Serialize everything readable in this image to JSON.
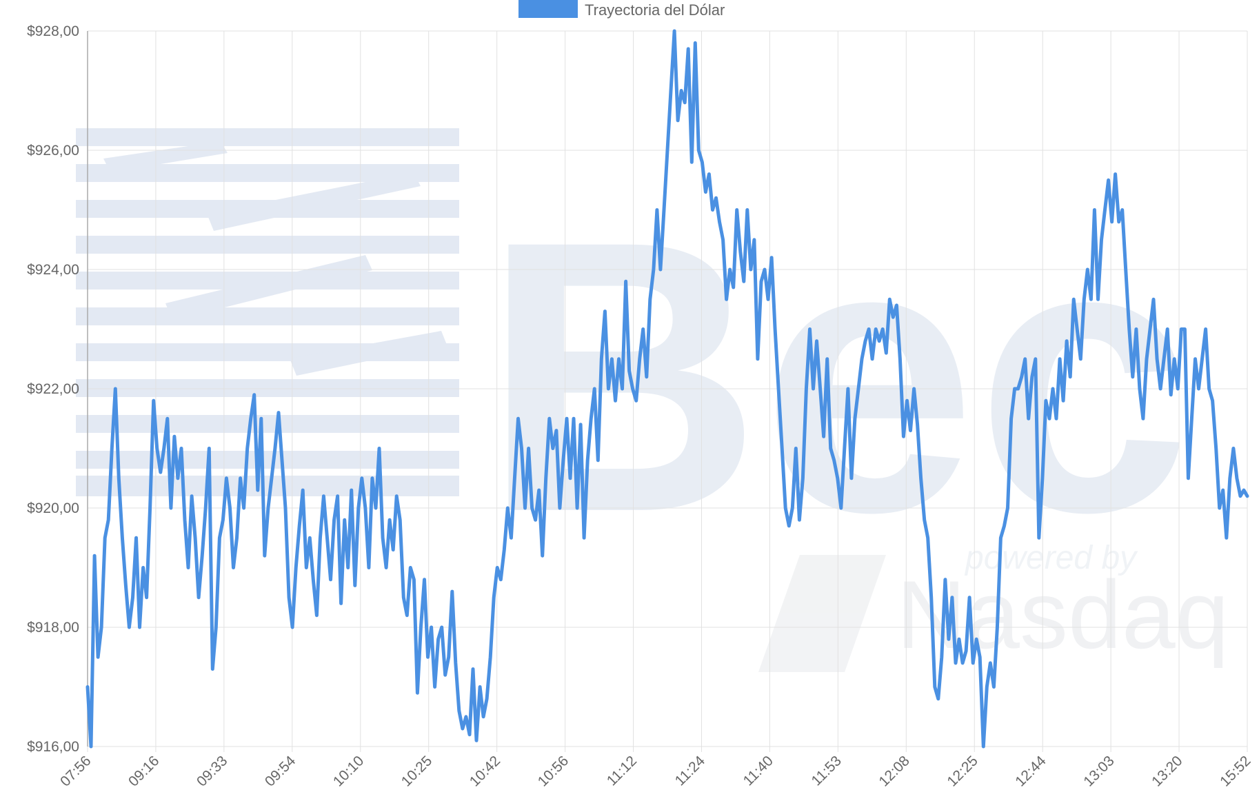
{
  "chart_data": {
    "type": "line",
    "legend": {
      "label": "Trayectoria del Dólar",
      "position": "top-center",
      "color": "#4a90e2"
    },
    "series": [
      {
        "name": "Trayectoria del Dólar",
        "color": "#4a90e2",
        "values": [
          917.0,
          916.0,
          919.2,
          917.5,
          918.0,
          919.5,
          919.8,
          921.0,
          922.0,
          920.5,
          919.5,
          918.7,
          918.0,
          918.5,
          919.5,
          918.0,
          919.0,
          918.5,
          920.0,
          921.8,
          921.0,
          920.6,
          921.0,
          921.5,
          920.0,
          921.2,
          920.5,
          921.0,
          919.8,
          919.0,
          920.2,
          919.5,
          918.5,
          919.2,
          920.0,
          921.0,
          917.3,
          918.0,
          919.5,
          919.8,
          920.5,
          920.0,
          919.0,
          919.5,
          920.5,
          920.0,
          921.0,
          921.5,
          921.9,
          920.3,
          921.5,
          919.2,
          920.0,
          920.5,
          921.0,
          921.6,
          920.8,
          920.0,
          918.5,
          918.0,
          919.0,
          919.7,
          920.3,
          919.0,
          919.5,
          918.8,
          918.2,
          919.5,
          920.2,
          919.5,
          918.8,
          919.8,
          920.2,
          918.4,
          919.8,
          919.0,
          920.3,
          918.7,
          920.0,
          920.5,
          920.0,
          919.0,
          920.5,
          920.0,
          921.0,
          919.5,
          919.0,
          919.8,
          919.3,
          920.2,
          919.8,
          918.5,
          918.2,
          919.0,
          918.8,
          916.9,
          918.0,
          918.8,
          917.5,
          918.0,
          917.0,
          917.8,
          918.0,
          917.2,
          917.5,
          918.6,
          917.4,
          916.6,
          916.3,
          916.5,
          916.2,
          917.3,
          916.1,
          917.0,
          916.5,
          916.8,
          917.5,
          918.5,
          919.0,
          918.8,
          919.3,
          920.0,
          919.5,
          920.5,
          921.5,
          921.0,
          920.0,
          921.0,
          920.0,
          919.8,
          920.3,
          919.2,
          920.5,
          921.5,
          921.0,
          921.3,
          920.0,
          920.8,
          921.5,
          920.5,
          921.5,
          920.0,
          921.4,
          919.5,
          920.8,
          921.5,
          922.0,
          920.8,
          922.5,
          923.3,
          922.0,
          922.5,
          921.8,
          922.5,
          922.0,
          923.8,
          922.3,
          922.0,
          921.8,
          922.5,
          923.0,
          922.2,
          923.5,
          924.0,
          925.0,
          924.0,
          925.0,
          926.0,
          927.0,
          928.0,
          926.5,
          927.0,
          926.8,
          927.7,
          925.8,
          927.8,
          926.0,
          925.8,
          925.3,
          925.6,
          925.0,
          925.2,
          924.8,
          924.5,
          923.5,
          924.0,
          923.7,
          925.0,
          924.3,
          923.8,
          925.0,
          924.0,
          924.5,
          922.5,
          923.8,
          924.0,
          923.5,
          924.2,
          923.0,
          922.0,
          921.0,
          920.0,
          919.7,
          920.0,
          921.0,
          919.8,
          920.5,
          922.0,
          923.0,
          922.0,
          922.8,
          922.0,
          921.2,
          922.5,
          921.0,
          920.8,
          920.5,
          920.0,
          921.0,
          922.0,
          920.5,
          921.5,
          922.0,
          922.5,
          922.8,
          923.0,
          922.5,
          923.0,
          922.8,
          923.0,
          922.6,
          923.5,
          923.2,
          923.4,
          922.5,
          921.2,
          921.8,
          921.3,
          922.0,
          921.4,
          920.5,
          919.8,
          919.5,
          918.5,
          917.0,
          916.8,
          917.5,
          918.8,
          917.8,
          918.5,
          917.4,
          917.8,
          917.4,
          917.6,
          918.5,
          917.4,
          917.8,
          917.5,
          916.0,
          917.0,
          917.4,
          917.0,
          918.0,
          919.5,
          919.7,
          920.0,
          921.5,
          922.0,
          922.0,
          922.2,
          922.5,
          921.5,
          922.2,
          922.5,
          919.5,
          920.5,
          921.8,
          921.5,
          922.0,
          921.5,
          922.5,
          921.8,
          922.8,
          922.2,
          923.5,
          923.0,
          922.5,
          923.5,
          924.0,
          923.5,
          925.0,
          923.5,
          924.5,
          925.0,
          925.5,
          924.8,
          925.6,
          924.8,
          925.0,
          924.0,
          923.0,
          922.2,
          923.0,
          922.0,
          921.5,
          922.5,
          923.0,
          923.5,
          922.5,
          922.0,
          922.5,
          923.0,
          921.9,
          922.5,
          922.0,
          923.0,
          923.0,
          920.5,
          921.5,
          922.5,
          922.0,
          922.5,
          923.0,
          922.0,
          921.8,
          921.0,
          920.0,
          920.3,
          919.5,
          920.5,
          921.0,
          920.5,
          920.2,
          920.3,
          920.2
        ]
      }
    ],
    "x_tick_labels": [
      "07:56",
      "09:16",
      "09:33",
      "09:54",
      "10:10",
      "10:25",
      "10:42",
      "10:56",
      "11:12",
      "11:24",
      "11:40",
      "11:53",
      "12:08",
      "12:25",
      "12:44",
      "13:03",
      "13:20",
      "15:52"
    ],
    "y_tick_labels": [
      "$928,00",
      "$926,00",
      "$924,00",
      "$922,00",
      "$920,00",
      "$918,00",
      "$916,00"
    ],
    "ylim": [
      916,
      928
    ],
    "grid": true,
    "watermark": [
      "Bec",
      "powered by",
      "Nasdaq"
    ]
  }
}
